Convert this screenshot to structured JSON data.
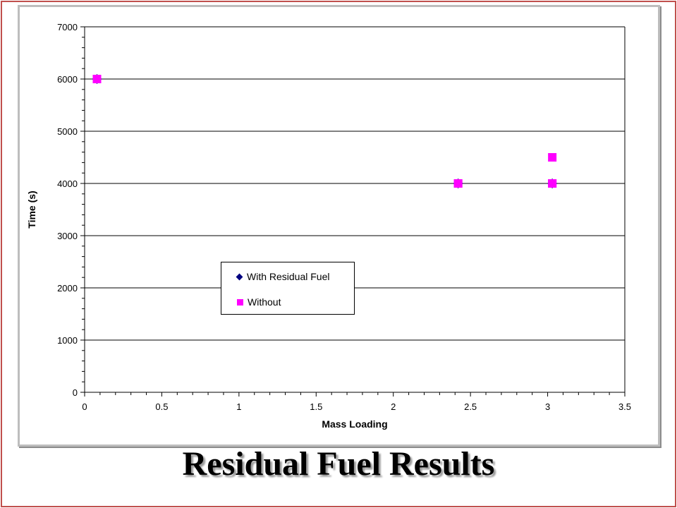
{
  "slide": {
    "title": "Residual Fuel Results"
  },
  "chart_data": {
    "type": "scatter",
    "title": "",
    "xlabel": "Mass Loading",
    "ylabel": "Time (s)",
    "xlim": [
      0,
      3.5
    ],
    "ylim": [
      0,
      7000
    ],
    "x_ticks": [
      "0",
      "0.5",
      "1",
      "1.5",
      "2",
      "2.5",
      "3",
      "3.5"
    ],
    "x_tick_values": [
      0,
      0.5,
      1,
      1.5,
      2,
      2.5,
      3,
      3.5
    ],
    "y_ticks": [
      "0",
      "1000",
      "2000",
      "3000",
      "4000",
      "5000",
      "6000",
      "7000"
    ],
    "y_tick_values": [
      0,
      1000,
      2000,
      3000,
      4000,
      5000,
      6000,
      7000
    ],
    "grid": "horizontal",
    "legend_position": "center-left",
    "series": [
      {
        "name": "With Residual Fuel",
        "marker": "diamond",
        "color": "#000080",
        "points": [
          [
            0.08,
            6000
          ],
          [
            2.42,
            4000
          ],
          [
            3.03,
            4000
          ]
        ]
      },
      {
        "name": "Without",
        "marker": "square",
        "color": "#ff00ff",
        "points": [
          [
            0.08,
            6000
          ],
          [
            2.42,
            4000
          ],
          [
            3.03,
            4000
          ],
          [
            3.03,
            4500
          ]
        ]
      }
    ]
  },
  "colors": {
    "frame": "#c0504d",
    "panel_border": "#bdbdbd",
    "grid": "#000000"
  }
}
